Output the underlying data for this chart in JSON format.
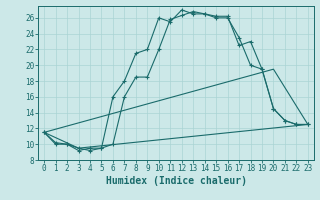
{
  "xlabel": "Humidex (Indice chaleur)",
  "bg_color": "#cce8e8",
  "line_color": "#1a6b6b",
  "grid_color": "#aad4d4",
  "xlim": [
    -0.5,
    23.5
  ],
  "ylim": [
    8,
    27.5
  ],
  "xticks": [
    0,
    1,
    2,
    3,
    4,
    5,
    6,
    7,
    8,
    9,
    10,
    11,
    12,
    13,
    14,
    15,
    16,
    17,
    18,
    19,
    20,
    21,
    22,
    23
  ],
  "yticks": [
    8,
    10,
    12,
    14,
    16,
    18,
    20,
    22,
    24,
    26
  ],
  "line1_x": [
    0,
    1,
    2,
    3,
    4,
    5,
    6,
    7,
    8,
    9,
    10,
    11,
    12,
    13,
    14,
    15,
    16,
    17,
    18,
    19,
    20,
    21,
    22,
    23
  ],
  "line1_y": [
    11.5,
    10.2,
    10.0,
    9.5,
    9.2,
    9.5,
    10.0,
    16.0,
    18.5,
    18.5,
    22.0,
    25.8,
    26.3,
    26.8,
    26.5,
    26.2,
    26.2,
    22.5,
    23.0,
    19.5,
    14.5,
    13.0,
    12.5,
    12.5
  ],
  "line2_x": [
    0,
    1,
    2,
    3,
    4,
    5,
    6,
    7,
    8,
    9,
    10,
    11,
    12,
    13,
    14,
    15,
    16,
    17,
    18,
    19,
    20,
    21,
    22,
    23
  ],
  "line2_y": [
    11.5,
    10.0,
    10.0,
    9.2,
    9.5,
    9.5,
    16.0,
    18.0,
    21.5,
    22.0,
    26.0,
    25.5,
    27.0,
    26.5,
    26.5,
    26.0,
    26.0,
    23.5,
    20.0,
    19.5,
    14.5,
    13.0,
    12.5,
    12.5
  ],
  "line3_x": [
    0,
    3,
    23
  ],
  "line3_y": [
    11.5,
    9.5,
    12.5
  ],
  "line4_x": [
    0,
    20,
    23
  ],
  "line4_y": [
    11.5,
    19.5,
    12.5
  ],
  "xlabel_fontsize": 7,
  "tick_fontsize": 5.5
}
